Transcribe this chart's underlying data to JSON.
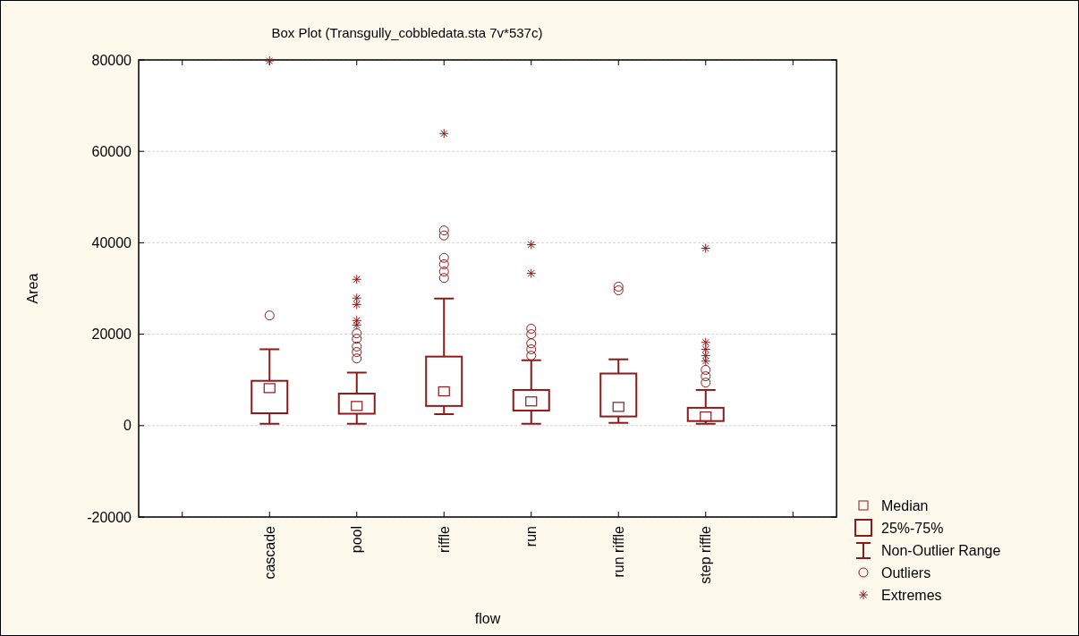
{
  "chart_data": {
    "type": "box",
    "title": "Box Plot (Transgully_cobbledata.sta 7v*537c)",
    "xlabel": "flow",
    "ylabel": "Area",
    "categories": [
      "cascade",
      "pool",
      "riffle",
      "run",
      "run riffle",
      "step riffle"
    ],
    "ylim": [
      -20000,
      80000
    ],
    "yticks": [
      -20000,
      0,
      20000,
      40000,
      60000,
      80000
    ],
    "grid": "y",
    "legend": "bottom right",
    "annotations": [
      "Median",
      "25%-75%",
      "Non-Outlier Range"
    ],
    "series": [
      {
        "color": "#8b1a1a",
        "boxes": [
          {
            "low": 400,
            "q1": 2700,
            "median": 8200,
            "q3": 9800,
            "high": 16700
          },
          {
            "low": 400,
            "q1": 2600,
            "median": 4300,
            "q3": 7000,
            "high": 11600
          },
          {
            "low": 2500,
            "q1": 4300,
            "median": 7500,
            "q3": 15100,
            "high": 27800
          },
          {
            "low": 400,
            "q1": 3300,
            "median": 5300,
            "q3": 7800,
            "high": 14300
          },
          {
            "low": 600,
            "q1": 2000,
            "median": 4100,
            "q3": 11400,
            "high": 14500
          },
          {
            "low": 400,
            "q1": 1000,
            "median": 2000,
            "q3": 3900,
            "high": 7800
          }
        ]
      },
      {
        "type": "scatter",
        "name": "Outliers",
        "color": "#8b1a1a",
        "marker": "circle",
        "x": [
          "cascade",
          "pool",
          "pool",
          "pool",
          "pool",
          "pool",
          "riffle",
          "riffle",
          "riffle",
          "riffle",
          "riffle",
          "riffle",
          "run",
          "run",
          "run",
          "run",
          "run",
          "run riffle",
          "run riffle",
          "step riffle",
          "step riffle",
          "step riffle"
        ],
        "values": [
          24100,
          20200,
          19000,
          17300,
          16100,
          14700,
          42700,
          41600,
          36700,
          35300,
          33700,
          32300,
          21200,
          20000,
          18000,
          16700,
          15300,
          30400,
          29600,
          12200,
          10800,
          9400
        ]
      },
      {
        "type": "scatter",
        "name": "Extremes",
        "color": "#8b1a1a",
        "marker": "cross",
        "x": [
          "cascade",
          "pool",
          "pool",
          "pool",
          "pool",
          "pool",
          "riffle",
          "run",
          "run",
          "step riffle",
          "step riffle",
          "step riffle",
          "step riffle",
          "step riffle"
        ],
        "values": [
          79800,
          32000,
          27900,
          26500,
          23000,
          22000,
          63900,
          39600,
          33300,
          38800,
          18200,
          16700,
          15300,
          14100
        ]
      }
    ]
  }
}
